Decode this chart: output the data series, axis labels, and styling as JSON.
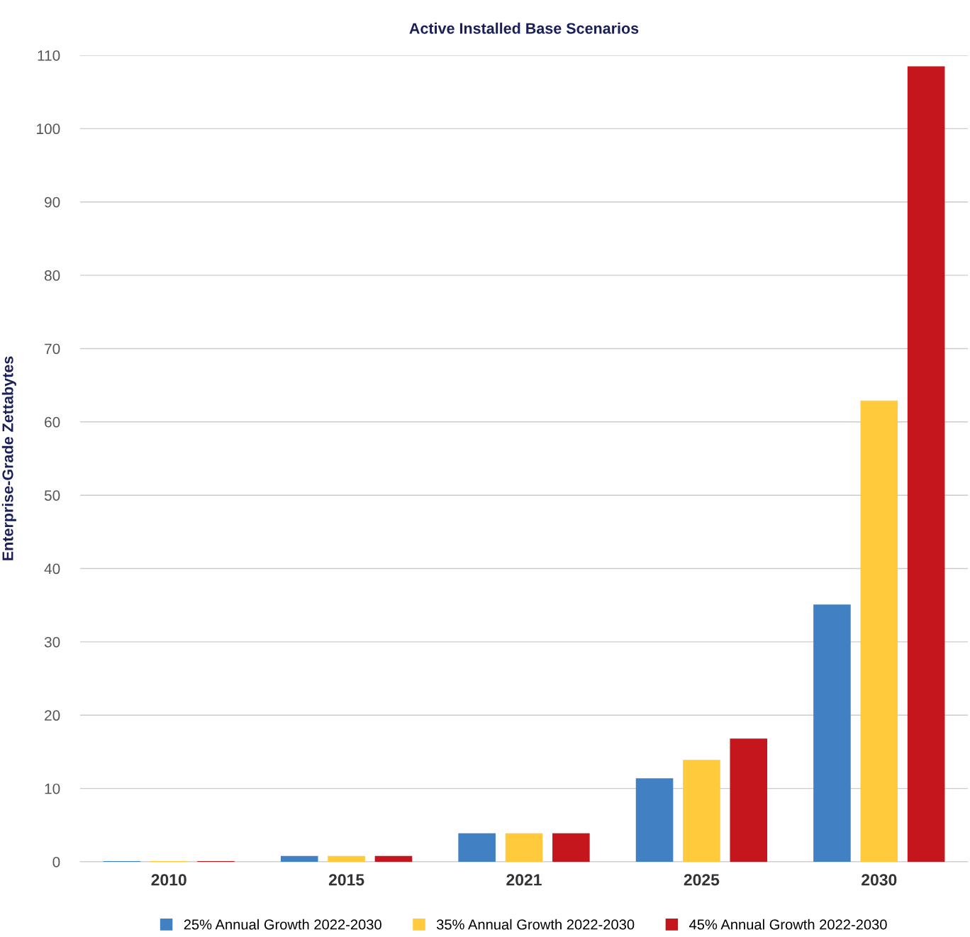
{
  "chart_data": {
    "type": "bar",
    "title": "Active Installed Base Scenarios",
    "ylabel": "Enterprise-Grade Zettabytes",
    "categories": [
      "2010",
      "2015",
      "2021",
      "2025",
      "2030"
    ],
    "series": [
      {
        "name": "25% Annual Growth 2022-2030",
        "color": "#4280c4",
        "values": [
          0.1,
          0.8,
          3.9,
          11.4,
          35.1
        ]
      },
      {
        "name": "35% Annual Growth 2022-2030",
        "color": "#ffcb3d",
        "values": [
          0.1,
          0.8,
          3.9,
          13.9,
          62.9
        ]
      },
      {
        "name": "45% Annual Growth 2022-2030",
        "color": "#c4161c",
        "values": [
          0.1,
          0.8,
          3.9,
          16.8,
          108.5
        ]
      }
    ],
    "ylim": [
      0,
      110
    ],
    "yticks": [
      0,
      10,
      20,
      30,
      40,
      50,
      60,
      70,
      80,
      90,
      100,
      110
    ],
    "grid": "y",
    "legend": "bottom"
  }
}
